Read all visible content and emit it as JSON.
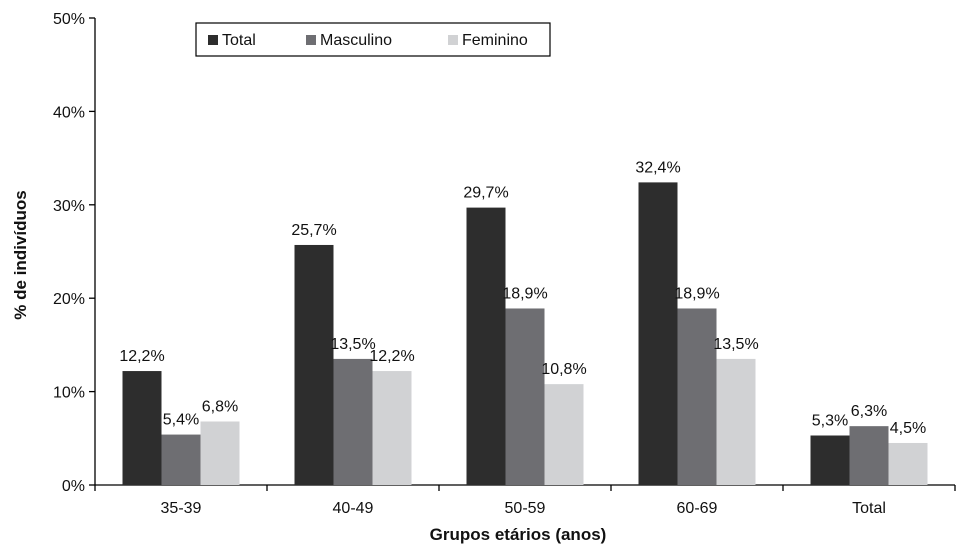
{
  "chart_data": {
    "type": "bar",
    "categories": [
      "35-39",
      "40-49",
      "50-59",
      "60-69",
      "Total"
    ],
    "series": [
      {
        "name": "Total",
        "values": [
          12.2,
          25.7,
          29.7,
          32.4,
          5.3
        ],
        "labels": [
          "12,2%",
          "25,7%",
          "29,7%",
          "32,4%",
          "5,3%"
        ],
        "color": "#2d2d2d"
      },
      {
        "name": "Masculino",
        "values": [
          5.4,
          13.5,
          18.9,
          18.9,
          6.3
        ],
        "labels": [
          "5,4%",
          "13,5%",
          "18,9%",
          "18,9%",
          "6,3%"
        ],
        "color": "#6e6e72"
      },
      {
        "name": "Feminino",
        "values": [
          6.8,
          12.2,
          10.8,
          13.5,
          4.5
        ],
        "labels": [
          "6,8%",
          "12,2%",
          "10,8%",
          "13,5%",
          "4,5%"
        ],
        "color": "#d1d2d4"
      }
    ],
    "xlabel": "Grupos etários (anos)",
    "ylabel": "% de indivíduos",
    "ylim": [
      0,
      50
    ],
    "yticks": [
      "0%",
      "10%",
      "20%",
      "30%",
      "40%",
      "50%"
    ],
    "legend_position": "top-center",
    "grid": false
  }
}
